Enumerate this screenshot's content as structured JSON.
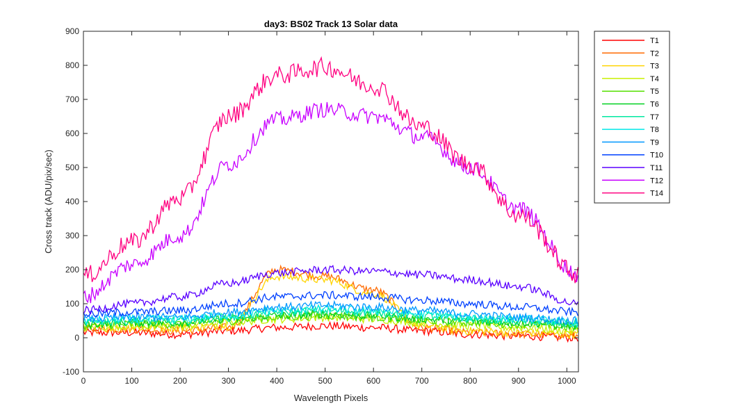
{
  "chart_data": {
    "type": "line",
    "title": "day3: BS02  Track 13 Solar data",
    "xlabel": "Wavelength Pixels",
    "ylabel": "Cross track (ADU/pix/sec)",
    "xlim": [
      0,
      1024
    ],
    "ylim": [
      -100,
      900
    ],
    "xticks": [
      0,
      100,
      200,
      300,
      400,
      500,
      600,
      700,
      800,
      900,
      1000
    ],
    "yticks": [
      -100,
      0,
      100,
      200,
      300,
      400,
      500,
      600,
      700,
      800,
      900
    ],
    "grid": false,
    "legend_position": "outside-right-top",
    "x": [
      0,
      100,
      200,
      300,
      400,
      500,
      600,
      700,
      800,
      900,
      1024
    ],
    "series": [
      {
        "name": "T1",
        "color": "#ff0000",
        "values": [
          15,
          15,
          10,
          20,
          30,
          35,
          30,
          20,
          10,
          5,
          0
        ]
      },
      {
        "name": "T2",
        "color": "#ff6a00",
        "values": [
          25,
          25,
          20,
          30,
          200,
          180,
          140,
          30,
          15,
          10,
          5
        ]
      },
      {
        "name": "T3",
        "color": "#ffd400",
        "values": [
          30,
          30,
          30,
          35,
          180,
          170,
          130,
          35,
          20,
          15,
          10
        ]
      },
      {
        "name": "T4",
        "color": "#c8f000",
        "values": [
          30,
          35,
          35,
          45,
          55,
          60,
          55,
          45,
          35,
          30,
          20
        ]
      },
      {
        "name": "T5",
        "color": "#55e000",
        "values": [
          35,
          40,
          40,
          50,
          60,
          65,
          60,
          50,
          45,
          40,
          30
        ]
      },
      {
        "name": "T6",
        "color": "#00d020",
        "values": [
          40,
          45,
          45,
          55,
          65,
          70,
          65,
          55,
          50,
          45,
          35
        ]
      },
      {
        "name": "T7",
        "color": "#00e8a0",
        "values": [
          45,
          50,
          50,
          60,
          75,
          80,
          75,
          65,
          55,
          50,
          40
        ]
      },
      {
        "name": "T8",
        "color": "#00e8e8",
        "values": [
          50,
          55,
          55,
          65,
          80,
          85,
          80,
          70,
          60,
          55,
          45
        ]
      },
      {
        "name": "T9",
        "color": "#0098ff",
        "values": [
          55,
          60,
          60,
          75,
          90,
          95,
          90,
          80,
          70,
          60,
          50
        ]
      },
      {
        "name": "T10",
        "color": "#0040ff",
        "values": [
          70,
          75,
          80,
          100,
          120,
          125,
          120,
          110,
          100,
          90,
          75
        ]
      },
      {
        "name": "T11",
        "color": "#5a00ff",
        "values": [
          80,
          100,
          120,
          160,
          190,
          200,
          195,
          185,
          170,
          150,
          100
        ]
      },
      {
        "name": "T12",
        "color": "#c800ff",
        "values": [
          120,
          215,
          300,
          510,
          640,
          670,
          650,
          590,
          500,
          380,
          185
        ]
      },
      {
        "name": "T14",
        "color": "#ff0080",
        "values": [
          180,
          280,
          410,
          650,
          770,
          795,
          740,
          620,
          510,
          360,
          185
        ]
      }
    ]
  }
}
